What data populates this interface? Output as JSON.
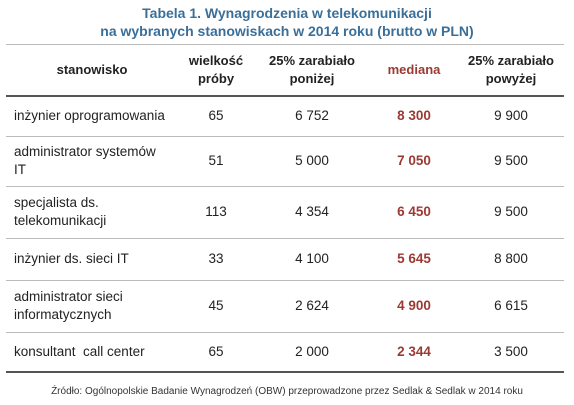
{
  "title": {
    "line1": "Tabela 1. Wynagrodzenia w telekomunikacji",
    "line2": "na wybranych stanowiskach w 2014 roku (brutto w PLN)"
  },
  "headers": {
    "position": "stanowisko",
    "sample": [
      "wielkość",
      "próby"
    ],
    "low": [
      "25% zarabiało",
      "poniżej"
    ],
    "median": "mediana",
    "high": [
      "25% zarabiało",
      "powyżej"
    ]
  },
  "rows": [
    {
      "position": [
        "inżynier oprogramowania"
      ],
      "sample": "65",
      "low": "6 752",
      "median": "8 300",
      "high": "9 900"
    },
    {
      "position": [
        "administrator systemów",
        "IT"
      ],
      "sample": "51",
      "low": "5 000",
      "median": "7 050",
      "high": "9 500"
    },
    {
      "position": [
        "specjalista ds.",
        "telekomunikacji"
      ],
      "sample": "113",
      "low": "4 354",
      "median": "6 450",
      "high": "9 500"
    },
    {
      "position": [
        "inżynier ds. sieci IT"
      ],
      "sample": "33",
      "low": "4 100",
      "median": "5 645",
      "high": "8 800"
    },
    {
      "position": [
        "administrator sieci",
        "informatycznych"
      ],
      "sample": "45",
      "low": "2 624",
      "median": "4 900",
      "high": "6 615"
    },
    {
      "position": [
        "konsultant  call center"
      ],
      "sample": "65",
      "low": "2 000",
      "median": "2 344",
      "high": "3 500"
    }
  ],
  "source": "Źródło: Ogólnopolskie Badanie Wynagrodzeń (OBW) przeprowadzone przez Sedlak & Sedlak w 2014 roku",
  "colors": {
    "title": "#3a6f9a",
    "median": "#9b3a33"
  }
}
